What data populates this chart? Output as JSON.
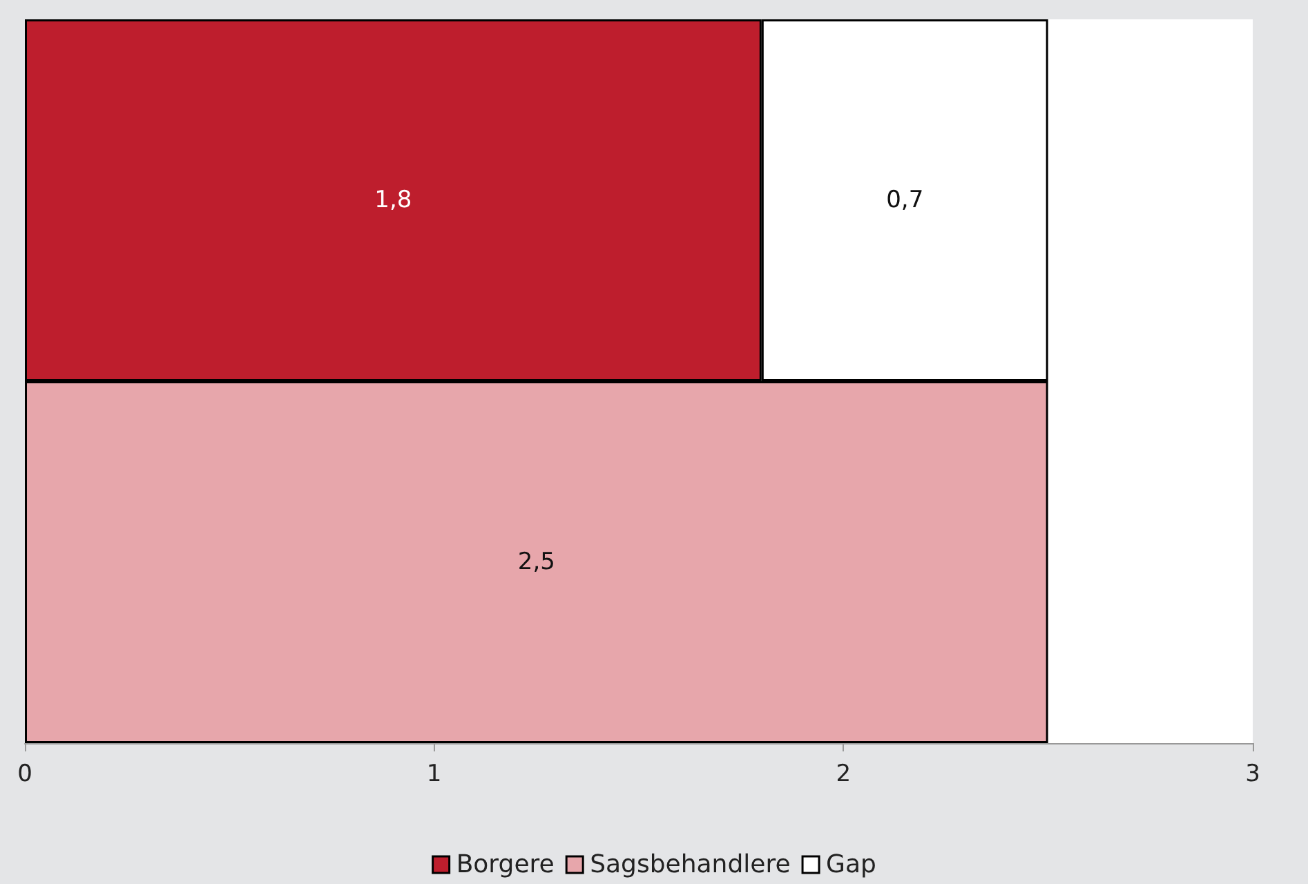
{
  "chart_data": {
    "type": "bar",
    "orientation": "horizontal",
    "stacked": true,
    "categories": [
      null,
      null
    ],
    "series": [
      {
        "name": "Borgere",
        "color": "#be1e2d",
        "values": [
          1.8,
          null
        ],
        "value_labels": [
          "1,8",
          null
        ]
      },
      {
        "name": "Sagsbehandlere",
        "color": "#e7a6ab",
        "values": [
          null,
          2.5
        ],
        "value_labels": [
          null,
          "2,5"
        ]
      },
      {
        "name": "Gap",
        "color": "#ffffff",
        "values": [
          0.7,
          null
        ],
        "value_labels": [
          "0,7",
          null
        ]
      }
    ],
    "xlim": [
      0,
      3
    ],
    "xticks": [
      0,
      1,
      2,
      3
    ],
    "grid": false,
    "legend": "bottom"
  }
}
